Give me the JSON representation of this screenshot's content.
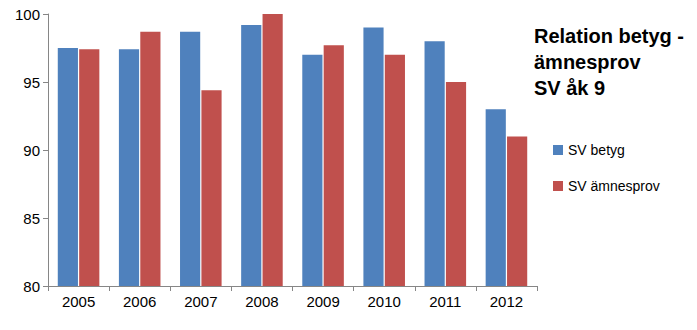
{
  "chart_data": {
    "type": "bar",
    "title": "Relation betyg -\nämnesprov\nSV åk 9",
    "categories": [
      "2005",
      "2006",
      "2007",
      "2008",
      "2009",
      "2010",
      "2011",
      "2012"
    ],
    "series": [
      {
        "name": "SV betyg",
        "color": "#4f81bd",
        "values": [
          97.5,
          97.4,
          98.7,
          99.2,
          97.0,
          99.0,
          98.0,
          93.0
        ]
      },
      {
        "name": "SV ämnesprov",
        "color": "#c0504d",
        "values": [
          97.4,
          98.7,
          94.4,
          100,
          97.7,
          97.0,
          95.0,
          91.0
        ]
      }
    ],
    "ylim": [
      80,
      100
    ],
    "yticks": [
      80,
      85,
      90,
      95,
      100
    ],
    "grid": false,
    "legend": "right"
  }
}
